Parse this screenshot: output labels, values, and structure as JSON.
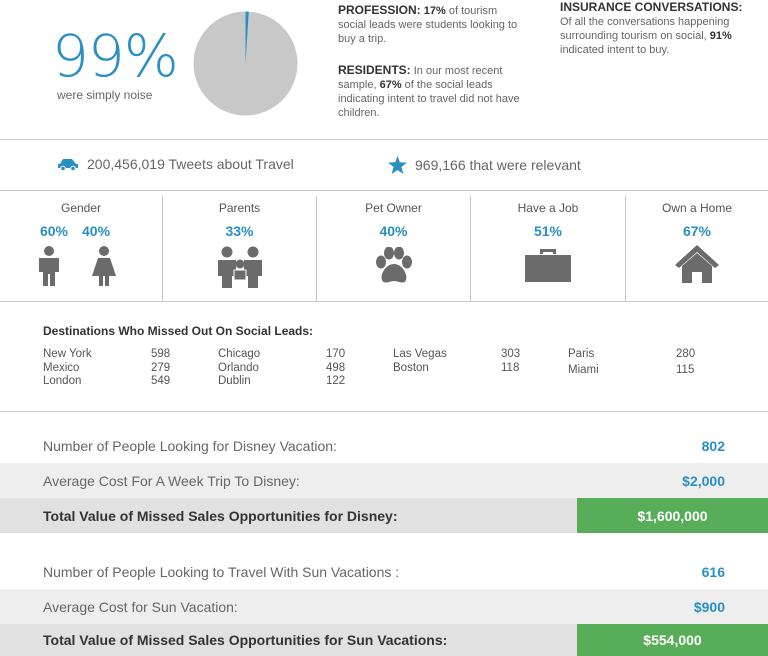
{
  "noise": {
    "percent": "99%",
    "label": "were simply noise",
    "pie_fraction_relevant": 0.01
  },
  "profession": {
    "title": "PROFESSION:",
    "text_a": "17%",
    "text_b": " of tourism social leads were students looking to buy a trip."
  },
  "residents": {
    "title": "RESIDENTS:",
    "text_a": " In our most recent sample, ",
    "pct": "67%",
    "text_b": " of the social leads indicating intent to travel did not have children."
  },
  "insurance": {
    "title": "INSURANCE CONVERSATIONS:",
    "text_a": "Of all the conversations happening surrounding tourism on social, ",
    "pct": "91%",
    "text_b": " indicated intent to buy."
  },
  "tweets": {
    "total": "200,456,019 Tweets about Travel",
    "relevant": "969,166 that were relevant"
  },
  "demographics": {
    "gender": {
      "label": "Gender",
      "male": "60%",
      "female": "40%"
    },
    "parents": {
      "label": "Parents",
      "value": "33%"
    },
    "pet": {
      "label": "Pet Owner",
      "value": "40%"
    },
    "job": {
      "label": "Have a Job",
      "value": "51%"
    },
    "home": {
      "label": "Own a Home",
      "value": "67%"
    }
  },
  "destinations": {
    "title": "Destinations Who Missed Out On Social Leads:",
    "groups": [
      [
        {
          "city": "New York",
          "n": "598"
        },
        {
          "city": "Mexico",
          "n": "279"
        },
        {
          "city": "London",
          "n": "549"
        }
      ],
      [
        {
          "city": "Chicago",
          "n": "170"
        },
        {
          "city": "Orlando",
          "n": "498"
        },
        {
          "city": "Dublin",
          "n": "122"
        }
      ],
      [
        {
          "city": "Las Vegas",
          "n": "303"
        },
        {
          "city": "Boston",
          "n": "118"
        }
      ],
      [
        {
          "city": "Paris",
          "n": "280"
        },
        {
          "city": "Miami",
          "n": "115"
        }
      ]
    ]
  },
  "disney": {
    "people_label": "Number of People Looking for Disney Vacation:",
    "people": "802",
    "cost_label": "Average Cost For A Week Trip To Disney:",
    "cost": "$2,000",
    "total_label": "Total Value of Missed Sales Opportunities for Disney:",
    "total": "$1,600,000"
  },
  "sun": {
    "people_label": "Number of People Looking to Travel With Sun Vacations  :",
    "people": "616",
    "cost_label": "Average Cost for Sun Vacation:",
    "cost": "$900",
    "total_label": "Total Value of Missed Sales Opportunities for Sun Vacations:",
    "total": "$554,000"
  },
  "colors": {
    "accent": "#2a8fc2",
    "green": "#58ad58",
    "icon": "#6b6b6b",
    "pie": "#c8c8c8"
  },
  "icons": [
    "car-icon",
    "star-icon",
    "man-icon",
    "woman-icon",
    "family-icon",
    "paw-icon",
    "briefcase-icon",
    "house-icon"
  ]
}
